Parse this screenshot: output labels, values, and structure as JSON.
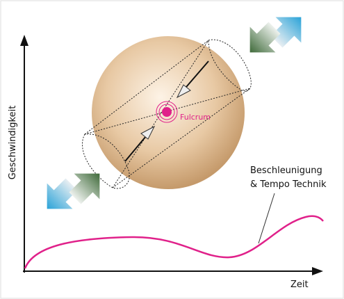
{
  "axes": {
    "y_label": "Geschwindigkeit",
    "x_label": "Zeit"
  },
  "labels": {
    "fulcrum": "Fulcrum",
    "curve": [
      "Beschleunigung",
      "& Tempo Technik"
    ]
  }
}
